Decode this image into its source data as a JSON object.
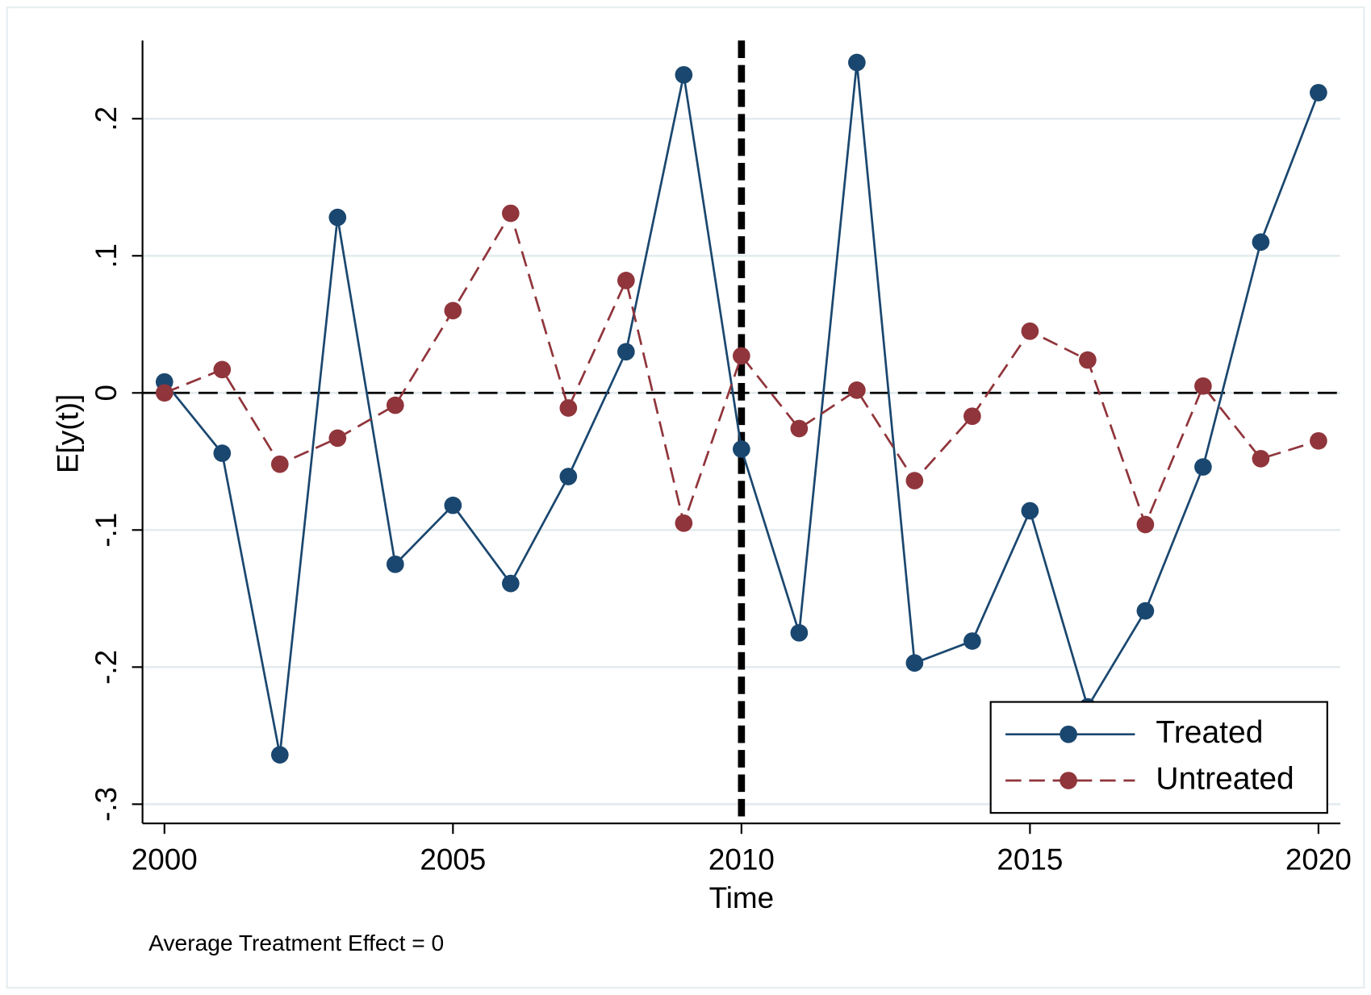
{
  "chart_data": {
    "type": "line",
    "xlabel": "Time",
    "ylabel": "E[y(t)]",
    "note": "Average Treatment Effect = 0",
    "x": [
      2000,
      2001,
      2002,
      2003,
      2004,
      2005,
      2006,
      2007,
      2008,
      2009,
      2010,
      2011,
      2012,
      2013,
      2014,
      2015,
      2016,
      2017,
      2018,
      2019,
      2020
    ],
    "series": [
      {
        "name": "Treated",
        "color": "#1a476f",
        "dash": false,
        "values": [
          0.008,
          -0.044,
          -0.264,
          0.128,
          -0.125,
          -0.082,
          -0.139,
          -0.061,
          0.03,
          0.232,
          -0.041,
          -0.175,
          0.241,
          -0.197,
          -0.181,
          -0.086,
          -0.229,
          -0.159,
          -0.054,
          0.11,
          0.219
        ]
      },
      {
        "name": "Untreated",
        "color": "#90353b",
        "dash": true,
        "values": [
          0,
          0.017,
          -0.052,
          -0.033,
          -0.009,
          0.06,
          0.131,
          -0.011,
          0.082,
          -0.095,
          0.027,
          -0.026,
          0.002,
          -0.064,
          -0.017,
          0.045,
          0.024,
          -0.096,
          0.005,
          -0.048,
          -0.035
        ]
      }
    ],
    "xlim": [
      1999.62,
      2020.38
    ],
    "ylim": [
      -0.314,
      0.257
    ],
    "xticks": [
      2000,
      2005,
      2010,
      2015,
      2020
    ],
    "yticks": [
      {
        "value": -0.3,
        "label": "-.3"
      },
      {
        "value": -0.2,
        "label": "-.2"
      },
      {
        "value": -0.1,
        "label": "-.1"
      },
      0,
      {
        "value": 0.1,
        "label": ".1"
      },
      {
        "value": 0.2,
        "label": ".2"
      }
    ],
    "xline": 2010,
    "yline": 0,
    "grid": true,
    "legend": "lower right"
  }
}
